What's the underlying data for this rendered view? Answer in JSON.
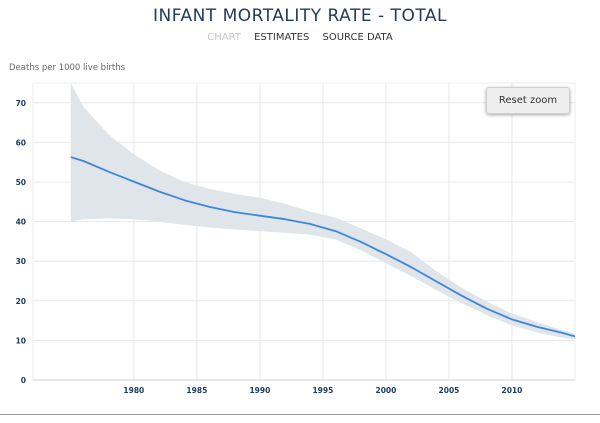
{
  "header": {
    "title": "INFANT MORTALITY RATE - TOTAL",
    "tabs": [
      {
        "label": "CHART",
        "active": true
      },
      {
        "label": "ESTIMATES",
        "active": false
      },
      {
        "label": "SOURCE DATA",
        "active": false
      }
    ]
  },
  "controls": {
    "reset_zoom_label": "Reset zoom"
  },
  "colors": {
    "line": "#3d86e0",
    "band": "#dfe5e9",
    "grid": "#e8e8e8",
    "axis_text": "#1f3a5a"
  },
  "chart_data": {
    "type": "line",
    "title": "INFANT MORTALITY RATE - TOTAL",
    "xlabel": "",
    "ylabel": "Deaths per 1000 live births",
    "xlim": [
      1972,
      2015
    ],
    "ylim": [
      0,
      75
    ],
    "x_ticks": [
      1980,
      1985,
      1990,
      1995,
      2000,
      2005,
      2010
    ],
    "y_ticks": [
      0,
      10,
      20,
      30,
      40,
      50,
      60,
      70
    ],
    "grid": true,
    "series": [
      {
        "name": "Estimate",
        "x": [
          1975,
          1976,
          1978,
          1980,
          1982,
          1984,
          1986,
          1988,
          1990,
          1992,
          1994,
          1996,
          1998,
          2000,
          2002,
          2004,
          2006,
          2008,
          2010,
          2012,
          2014,
          2015
        ],
        "values": [
          56.3,
          55.3,
          52.6,
          50.1,
          47.6,
          45.4,
          43.7,
          42.4,
          41.5,
          40.6,
          39.4,
          37.6,
          34.9,
          31.8,
          28.5,
          24.9,
          21.3,
          18.0,
          15.3,
          13.4,
          11.9,
          11.0
        ]
      }
    ],
    "uncertainty_band": {
      "x": [
        1975,
        1976,
        1978,
        1980,
        1982,
        1984,
        1986,
        1988,
        1990,
        1992,
        1994,
        1996,
        1998,
        2000,
        2002,
        2004,
        2006,
        2008,
        2010,
        2012,
        2014,
        2015
      ],
      "lower": [
        40.0,
        40.6,
        40.8,
        40.6,
        40.0,
        39.2,
        38.5,
        38.0,
        37.6,
        37.2,
        36.7,
        35.5,
        32.8,
        29.5,
        26.3,
        22.7,
        19.4,
        16.4,
        13.8,
        12.0,
        10.7,
        10.3
      ],
      "upper": [
        75.0,
        69.0,
        62.0,
        57.0,
        53.0,
        50.0,
        48.3,
        47.0,
        46.0,
        44.5,
        42.5,
        41.0,
        38.3,
        35.5,
        32.3,
        27.5,
        23.3,
        19.8,
        16.8,
        14.6,
        12.6,
        11.6
      ]
    }
  }
}
